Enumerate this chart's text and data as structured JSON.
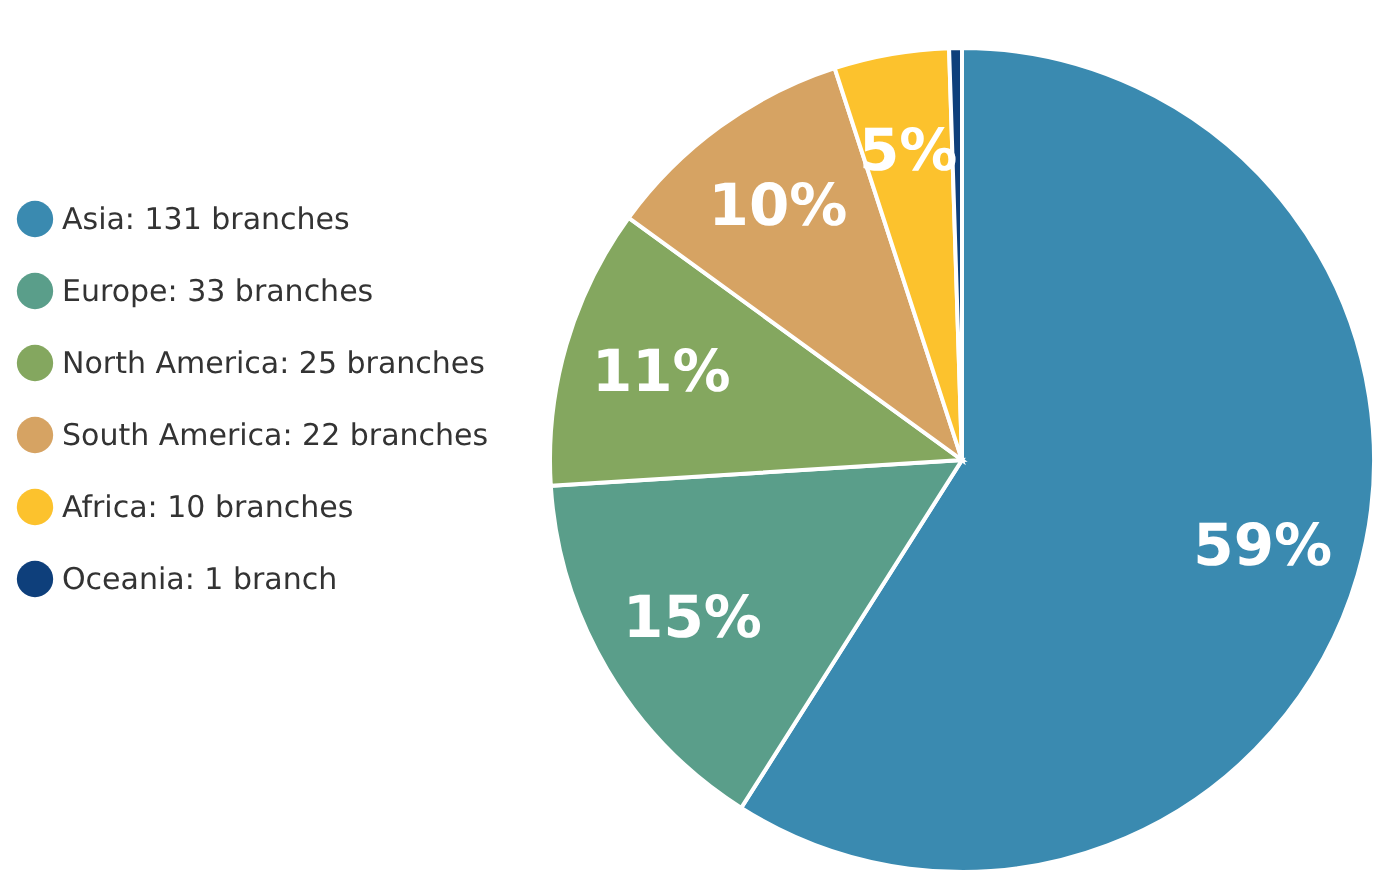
{
  "chart_data": {
    "type": "pie",
    "categories": [
      "Asia: 131 branches",
      "Europe: 33 branches",
      "North America: 25 branches",
      "South America: 22 branches",
      "Africa: 10 branches",
      "Oceania: 1 branch"
    ],
    "values": [
      59,
      15,
      11,
      10,
      4.5,
      0.5
    ],
    "colors": [
      "#3a8ab0",
      "#5a9e8a",
      "#84a75f",
      "#d6a363",
      "#fcc22d",
      "#0e3f7b"
    ],
    "value_labels": [
      "59%",
      "15%",
      "11%",
      "10%",
      "5%",
      null
    ],
    "legend": "left"
  }
}
